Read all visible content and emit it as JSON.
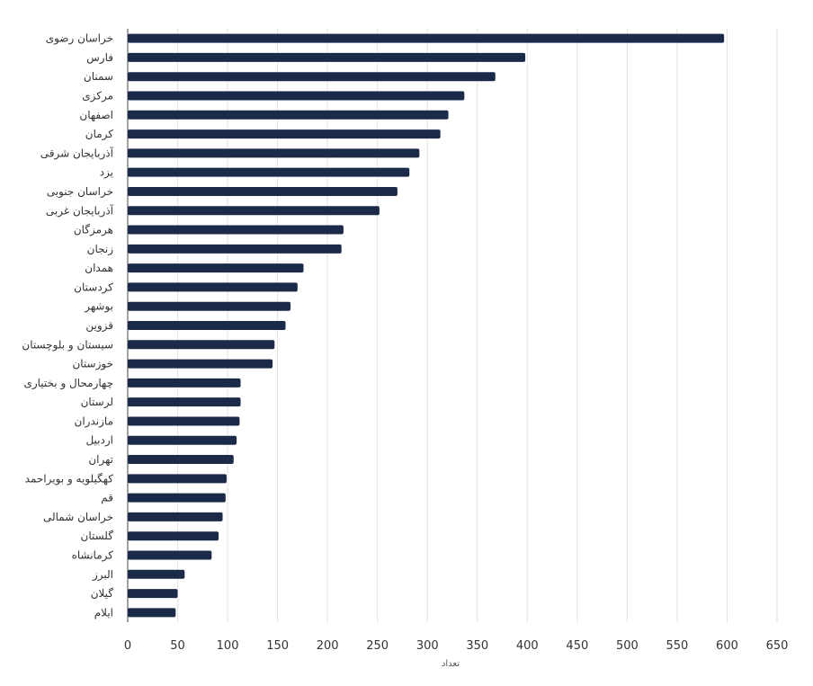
{
  "chart_data": {
    "type": "bar",
    "orientation": "horizontal",
    "xlabel": "تعداد",
    "xlim": [
      0,
      650
    ],
    "xticks": [
      0,
      50,
      100,
      150,
      200,
      250,
      300,
      350,
      400,
      450,
      500,
      550,
      600,
      650
    ],
    "grid": true,
    "bar_color": "#1c2a4a",
    "categories": [
      "خراسان رضوی",
      "فارس",
      "سمنان",
      "مرکزی",
      "اصفهان",
      "کرمان",
      "آذربایجان شرقی",
      "یزد",
      "خراسان جنوبی",
      "آذربایجان غربی",
      "هرمزگان",
      "زنجان",
      "همدان",
      "کردستان",
      "بوشهر",
      "قزوین",
      "سیستان و بلوچستان",
      "خوزستان",
      "چهارمحال و بختیاری",
      "لرستان",
      "مازندران",
      "اردبیل",
      "تهران",
      "کهگیلویه و بویراحمد",
      "قم",
      "خراسان شمالی",
      "گلستان",
      "کرمانشاه",
      "البرز",
      "گیلان",
      "ایلام"
    ],
    "values": [
      597,
      398,
      368,
      337,
      321,
      313,
      292,
      282,
      270,
      252,
      216,
      214,
      176,
      170,
      163,
      158,
      147,
      145,
      113,
      113,
      112,
      109,
      106,
      99,
      98,
      95,
      91,
      84,
      57,
      50,
      48
    ]
  }
}
